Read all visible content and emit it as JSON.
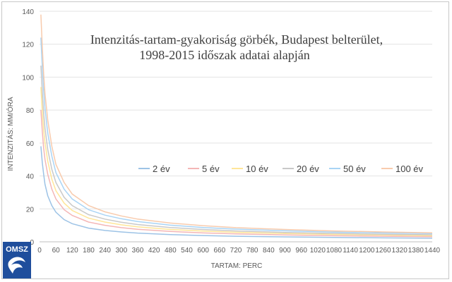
{
  "chart_data": {
    "type": "line",
    "title_line1": "Intenzitás-tartam-gyakoriság görbék, Budapest belterület,",
    "title_line2": "1998-2015  időszak adatai alapján",
    "xlabel": "TARTAM: PERC",
    "ylabel": "INTENZITÁS: MM/ÓRA",
    "xlim": [
      0,
      1440
    ],
    "ylim": [
      0,
      140
    ],
    "xticks": [
      0,
      60,
      120,
      180,
      240,
      300,
      360,
      420,
      480,
      540,
      600,
      660,
      720,
      780,
      840,
      900,
      960,
      1020,
      1080,
      1140,
      1200,
      1260,
      1320,
      1380,
      1440
    ],
    "yticks": [
      0,
      20,
      40,
      60,
      80,
      100,
      120,
      140
    ],
    "grid": "horizontal",
    "legend_position": "center-right",
    "x": [
      5,
      10,
      15,
      20,
      30,
      45,
      60,
      90,
      120,
      180,
      240,
      300,
      360,
      480,
      600,
      720,
      900,
      1080,
      1260,
      1440
    ],
    "series": [
      {
        "name": "2 év",
        "color": "#9dc3e6",
        "values": [
          58,
          48,
          41,
          35,
          28,
          22,
          18,
          13.5,
          11,
          8.3,
          6.9,
          6.0,
          5.3,
          4.4,
          3.8,
          3.4,
          3.0,
          2.7,
          2.4,
          2.2
        ]
      },
      {
        "name": "5 év",
        "color": "#f4b6b6",
        "values": [
          80,
          67,
          57,
          50,
          41,
          32,
          26,
          19.5,
          16,
          12,
          10,
          8.6,
          7.6,
          6.3,
          5.4,
          4.8,
          4.2,
          3.7,
          3.4,
          3.1
        ]
      },
      {
        "name": "10 év",
        "color": "#ffe699",
        "values": [
          94,
          79,
          68,
          60,
          49,
          38,
          31,
          23.5,
          19,
          14.4,
          12,
          10.3,
          9.1,
          7.5,
          6.5,
          5.8,
          5.0,
          4.5,
          4.1,
          3.7
        ]
      },
      {
        "name": "20 év",
        "color": "#c9c9c9",
        "values": [
          107,
          91,
          78,
          69,
          56,
          44,
          36,
          27,
          22,
          16.5,
          13.8,
          11.9,
          10.5,
          8.7,
          7.5,
          6.6,
          5.7,
          5.1,
          4.6,
          4.3
        ]
      },
      {
        "name": "50 év",
        "color": "#a9d4f5",
        "values": [
          124,
          106,
          92,
          81,
          66,
          52,
          42,
          32,
          26,
          19.5,
          16.2,
          14,
          12.3,
          10.1,
          8.7,
          7.7,
          6.7,
          5.9,
          5.4,
          5.0
        ]
      },
      {
        "name": "100 év",
        "color": "#f8cbad",
        "values": [
          138,
          118,
          102,
          90,
          74,
          58,
          47,
          36,
          29,
          22,
          18.2,
          15.7,
          13.8,
          11.4,
          9.8,
          8.6,
          7.5,
          6.6,
          6.0,
          5.5
        ]
      }
    ]
  },
  "logo": {
    "text": "OMSZ",
    "color": "#1f4e9c"
  }
}
